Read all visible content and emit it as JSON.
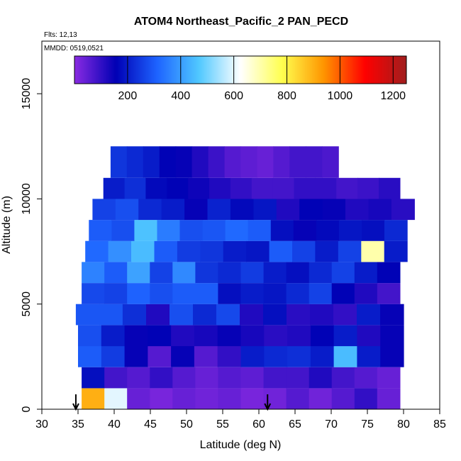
{
  "chart_data": {
    "type": "heatmap",
    "title": "ATOM4 Northeast_Pacific_2 PAN_PECD",
    "flights_label": "Flts: 12,13",
    "dates_label": "MMDD: 0519,0521",
    "xlabel": "Latitude (deg N)",
    "ylabel": "Altitude (m)",
    "xlim": [
      30,
      85
    ],
    "ylim": [
      0,
      17500
    ],
    "x_ticks": [
      "30",
      "35",
      "40",
      "45",
      "50",
      "55",
      "60",
      "65",
      "70",
      "75",
      "80",
      "85"
    ],
    "y_ticks": [
      "0",
      "5000",
      "10000",
      "15000"
    ],
    "colorbar": {
      "range": [
        0,
        1250
      ],
      "ticks": [
        "200",
        "400",
        "600",
        "800",
        "1000",
        "1200"
      ],
      "colors": [
        "#8a2be2",
        "#0000b4",
        "#1e64ff",
        "#50c8ff",
        "#ffffff",
        "#ffff50",
        "#ff9600",
        "#ff0000",
        "#a01e1e"
      ]
    },
    "markers_latitude": [
      34.7,
      61.2
    ],
    "layers": [
      {
        "alt": [
          0,
          1000
        ],
        "lat": [
          35.5,
          79.5
        ],
        "values": [
          900,
          600,
          40,
          20,
          40,
          30,
          40,
          20,
          30,
          60,
          30,
          60,
          100,
          40
        ]
      },
      {
        "alt": [
          1000,
          2000
        ],
        "lat": [
          35.5,
          79.5
        ],
        "values": [
          180,
          80,
          60,
          100,
          60,
          40,
          60,
          50,
          80,
          80,
          120,
          80,
          60,
          40
        ]
      },
      {
        "alt": [
          2000,
          3000
        ],
        "lat": [
          35.0,
          80.0
        ],
        "values": [
          300,
          250,
          150,
          60,
          150,
          60,
          100,
          200,
          220,
          230,
          200,
          450,
          200,
          150
        ]
      },
      {
        "alt": [
          3000,
          4000
        ],
        "lat": [
          35.0,
          80.0
        ],
        "values": [
          280,
          200,
          150,
          160,
          120,
          130,
          150,
          130,
          110,
          120,
          160,
          200,
          120,
          150
        ]
      },
      {
        "alt": [
          4000,
          5000
        ],
        "lat": [
          34.7,
          80.0
        ],
        "values": [
          290,
          290,
          230,
          120,
          280,
          220,
          270,
          120,
          180,
          110,
          120,
          100,
          200,
          150
        ]
      },
      {
        "alt": [
          5000,
          6000
        ],
        "lat": [
          35.5,
          79.5
        ],
        "values": [
          270,
          260,
          310,
          280,
          300,
          300,
          180,
          200,
          190,
          220,
          260,
          160,
          120,
          80
        ]
      },
      {
        "alt": [
          6000,
          7000
        ],
        "lat": [
          35.5,
          79.5
        ],
        "values": [
          360,
          300,
          410,
          260,
          370,
          240,
          220,
          250,
          200,
          180,
          220,
          260,
          200,
          160
        ]
      },
      {
        "alt": [
          7000,
          8000
        ],
        "lat": [
          36.0,
          80.5
        ],
        "values": [
          320,
          380,
          450,
          300,
          250,
          240,
          200,
          190,
          300,
          260,
          200,
          260,
          700,
          200
        ]
      },
      {
        "alt": [
          8000,
          9000
        ],
        "lat": [
          36.5,
          80.5
        ],
        "values": [
          300,
          280,
          460,
          350,
          280,
          290,
          320,
          300,
          180,
          150,
          170,
          190,
          180,
          220
        ]
      },
      {
        "alt": [
          9000,
          10000
        ],
        "lat": [
          37.0,
          81.5
        ],
        "values": [
          260,
          280,
          220,
          200,
          150,
          210,
          170,
          190,
          120,
          160,
          150,
          120,
          130,
          110
        ]
      },
      {
        "alt": [
          10000,
          11000
        ],
        "lat": [
          38.5,
          79.5
        ],
        "values": [
          200,
          230,
          170,
          160,
          140,
          120,
          100,
          80,
          80,
          100,
          100,
          80,
          90,
          110
        ]
      },
      {
        "alt": [
          11000,
          12500
        ],
        "lat": [
          39.5,
          71.0
        ],
        "values": [
          240,
          220,
          200,
          160,
          150,
          120,
          90,
          60,
          50,
          40,
          60,
          80,
          80,
          70
        ]
      }
    ]
  }
}
